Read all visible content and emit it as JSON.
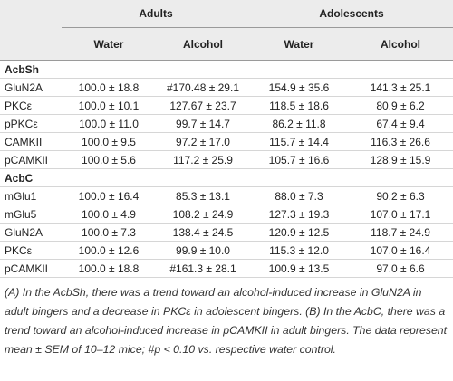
{
  "table": {
    "group_headers": [
      "Adults",
      "Adolescents"
    ],
    "column_headers": [
      "Water",
      "Alcohol",
      "Water",
      "Alcohol"
    ],
    "sections": [
      {
        "name": "AcbSh",
        "rows": [
          [
            "GluN2A",
            "100.0 ± 18.8",
            "#170.48 ± 29.1",
            "154.9 ± 35.6",
            "141.3 ± 25.1"
          ],
          [
            "PKCε",
            "100.0 ± 10.1",
            "127.67 ± 23.7",
            "118.5 ± 18.6",
            "80.9 ± 6.2"
          ],
          [
            "pPKCε",
            "100.0 ± 11.0",
            "99.7 ± 14.7",
            "86.2 ± 11.8",
            "67.4 ± 9.4"
          ],
          [
            "CAMKII",
            "100.0 ± 9.5",
            "97.2 ± 17.0",
            "115.7 ± 14.4",
            "116.3 ± 26.6"
          ],
          [
            "pCAMKII",
            "100.0 ± 5.6",
            "117.2 ± 25.9",
            "105.7 ± 16.6",
            "128.9 ± 15.9"
          ]
        ]
      },
      {
        "name": "AcbC",
        "rows": [
          [
            "mGlu1",
            "100.0 ± 16.4",
            "85.3 ± 13.1",
            "88.0 ± 7.3",
            "90.2 ± 6.3"
          ],
          [
            "mGlu5",
            "100.0 ± 4.9",
            "108.2 ± 24.9",
            "127.3 ± 19.3",
            "107.0 ± 17.1"
          ],
          [
            "GluN2A",
            "100.0 ± 7.3",
            "138.4 ± 24.5",
            "120.9 ± 12.5",
            "118.7 ± 24.9"
          ],
          [
            "PKCε",
            "100.0 ± 12.6",
            "99.9 ± 10.0",
            "115.3 ± 12.0",
            "107.0 ± 16.4"
          ],
          [
            "pCAMKII",
            "100.0 ± 18.8",
            "#161.3 ± 28.1",
            "100.9 ± 13.5",
            "97.0 ± 6.6"
          ]
        ]
      }
    ]
  },
  "footnote": "(A) In the AcbSh, there was a trend toward an alcohol-induced increase in GluN2A in adult bingers and a decrease in PKCε in adolescent bingers. (B) In the AcbC, there was a trend toward an alcohol-induced increase in pCAMKII in adult bingers. The data represent mean ± SEM of 10–12 mice; #p < 0.10 vs. respective water control."
}
